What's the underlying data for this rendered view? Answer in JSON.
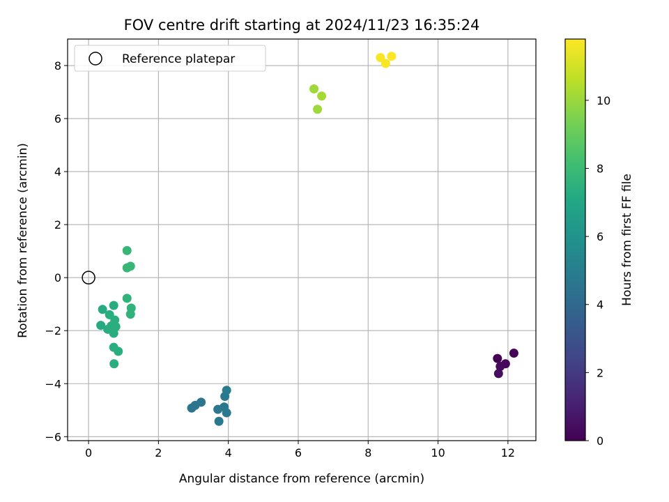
{
  "chart_data": {
    "type": "scatter",
    "title": "FOV centre drift starting at 2024/11/23 16:35:24",
    "xlabel": "Angular distance from reference (arcmin)",
    "ylabel": "Rotation from reference (arcmin)",
    "xlim": [
      -0.6,
      12.8
    ],
    "ylim": [
      -6.15,
      9.0
    ],
    "xticks": [
      0,
      2,
      4,
      6,
      8,
      10,
      12
    ],
    "yticks": [
      -6,
      -4,
      -2,
      0,
      2,
      4,
      6,
      8
    ],
    "grid": true,
    "legend": {
      "position": "top-left",
      "entries": [
        "Reference platepar"
      ]
    },
    "reference_point": {
      "x": 0,
      "y": 0,
      "label": "Reference platepar"
    },
    "colorbar": {
      "label": "Hours from first FF file",
      "range": [
        0,
        11.8
      ],
      "ticks": [
        0,
        2,
        4,
        6,
        8,
        10
      ],
      "colormap": "viridis"
    },
    "points": [
      {
        "x": 11.7,
        "y": -3.05,
        "t": 0.0
      },
      {
        "x": 12.17,
        "y": -2.85,
        "t": 0.1
      },
      {
        "x": 11.93,
        "y": -3.25,
        "t": 0.2
      },
      {
        "x": 11.78,
        "y": -3.35,
        "t": 0.3
      },
      {
        "x": 11.73,
        "y": -3.62,
        "t": 0.4
      },
      {
        "x": 2.95,
        "y": -4.92,
        "t": 4.6
      },
      {
        "x": 3.05,
        "y": -4.82,
        "t": 4.6
      },
      {
        "x": 3.22,
        "y": -4.7,
        "t": 4.6
      },
      {
        "x": 3.7,
        "y": -4.97,
        "t": 4.7
      },
      {
        "x": 3.73,
        "y": -5.42,
        "t": 4.7
      },
      {
        "x": 3.88,
        "y": -4.88,
        "t": 4.7
      },
      {
        "x": 3.9,
        "y": -4.48,
        "t": 4.8
      },
      {
        "x": 3.95,
        "y": -5.1,
        "t": 4.8
      },
      {
        "x": 3.95,
        "y": -4.25,
        "t": 4.9
      },
      {
        "x": 0.4,
        "y": -1.2,
        "t": 7.2
      },
      {
        "x": 0.35,
        "y": -1.8,
        "t": 7.2
      },
      {
        "x": 0.55,
        "y": -1.95,
        "t": 7.3
      },
      {
        "x": 0.6,
        "y": -1.4,
        "t": 7.3
      },
      {
        "x": 0.65,
        "y": -1.82,
        "t": 7.3
      },
      {
        "x": 0.7,
        "y": -2.02,
        "t": 7.3
      },
      {
        "x": 0.72,
        "y": -2.1,
        "t": 7.3
      },
      {
        "x": 0.72,
        "y": -1.05,
        "t": 7.3
      },
      {
        "x": 0.75,
        "y": -1.6,
        "t": 7.4
      },
      {
        "x": 0.78,
        "y": -1.85,
        "t": 7.4
      },
      {
        "x": 0.72,
        "y": -2.63,
        "t": 7.4
      },
      {
        "x": 0.85,
        "y": -2.78,
        "t": 7.4
      },
      {
        "x": 0.73,
        "y": -3.25,
        "t": 7.4
      },
      {
        "x": 1.1,
        "y": -0.78,
        "t": 7.6
      },
      {
        "x": 1.22,
        "y": -1.15,
        "t": 7.6
      },
      {
        "x": 1.2,
        "y": -1.38,
        "t": 7.6
      },
      {
        "x": 1.1,
        "y": 1.02,
        "t": 7.8
      },
      {
        "x": 1.1,
        "y": 0.37,
        "t": 7.8
      },
      {
        "x": 1.2,
        "y": 0.43,
        "t": 7.8
      },
      {
        "x": 6.45,
        "y": 7.12,
        "t": 10.1
      },
      {
        "x": 6.55,
        "y": 6.35,
        "t": 10.1
      },
      {
        "x": 6.67,
        "y": 6.85,
        "t": 10.2
      },
      {
        "x": 8.35,
        "y": 8.3,
        "t": 11.7
      },
      {
        "x": 8.5,
        "y": 8.08,
        "t": 11.7
      },
      {
        "x": 8.67,
        "y": 8.35,
        "t": 11.8
      }
    ]
  }
}
